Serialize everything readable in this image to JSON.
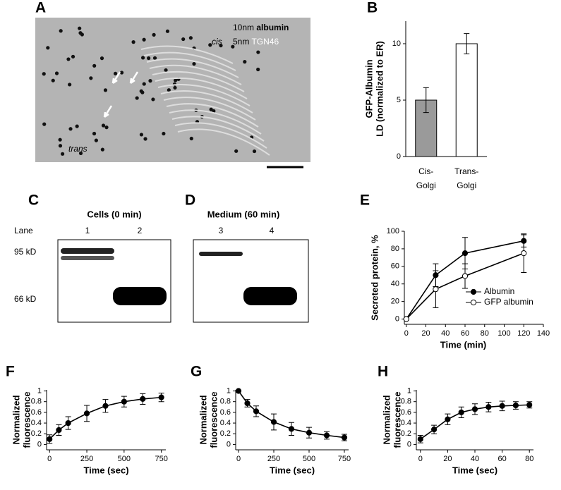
{
  "micrograph": {
    "label": "A",
    "legend": [
      {
        "size": "10nm",
        "name": "albumin"
      },
      {
        "size": "5nm",
        "name": "TGN46"
      }
    ],
    "cis": "cis",
    "trans": "trans"
  },
  "blots": [
    {
      "label": "C",
      "title": "Cells (0 min)",
      "lane_title": "Lane",
      "lanes": [
        "1",
        "2"
      ],
      "markers": [
        "95 kD",
        "66 kD"
      ]
    },
    {
      "label": "D",
      "title": "Medium (60 min)",
      "lanes": [
        "3",
        "4"
      ]
    }
  ],
  "chart_data": [
    {
      "type": "bar",
      "label": "B",
      "ylabel": "GFP-Albumin\nLD (normalized to ER)",
      "categories": [
        "Cis-\nGolgi",
        "Trans-\nGolgi"
      ],
      "values": [
        5,
        10
      ],
      "errors": [
        1.1,
        0.9
      ],
      "colors": [
        "#9a9a9a",
        "#ffffff"
      ],
      "ylim": [
        0,
        12
      ],
      "yticks": [
        0,
        5,
        10
      ]
    },
    {
      "type": "line",
      "label": "E",
      "ylabel": "Secreted protein, %",
      "xlabel": "Time (min)",
      "xlim": [
        -2,
        140
      ],
      "xticks": [
        0,
        20,
        40,
        60,
        80,
        100,
        120,
        140
      ],
      "ylim": [
        -6,
        100
      ],
      "yticks": [
        0,
        20,
        40,
        60,
        80,
        100
      ],
      "legend": "lower right",
      "series": [
        {
          "name": "Albumin",
          "color": "#000000",
          "marker_fill": "#000000",
          "x": [
            0,
            30,
            60,
            120
          ],
          "values": [
            0,
            50,
            75,
            89
          ],
          "errors": [
            0,
            13,
            18,
            7
          ]
        },
        {
          "name": "GFP albumin",
          "color": "#000000",
          "marker_fill": "#ffffff",
          "x": [
            0,
            30,
            60,
            120
          ],
          "values": [
            0,
            34,
            49,
            75
          ],
          "errors": [
            0,
            21,
            14,
            22
          ]
        }
      ]
    },
    {
      "type": "line",
      "label": "F",
      "ylabel": "Normalized\nfluorescence",
      "xlabel": "Time (sec)",
      "xlim": [
        -20,
        780
      ],
      "xticks": [
        0,
        250,
        500,
        750
      ],
      "ylim": [
        -0.1,
        1.02
      ],
      "yticks": [
        0,
        0.2,
        0.4,
        0.6,
        0.8,
        1
      ],
      "series": [
        {
          "color": "#000000",
          "marker_fill": "#000000",
          "x": [
            0,
            62.5,
            125,
            250,
            375,
            500,
            625,
            750
          ],
          "values": [
            0.1,
            0.27,
            0.4,
            0.58,
            0.72,
            0.8,
            0.85,
            0.88
          ],
          "errors": [
            0.08,
            0.1,
            0.12,
            0.15,
            0.12,
            0.1,
            0.1,
            0.08
          ]
        }
      ]
    },
    {
      "type": "line",
      "label": "G",
      "ylabel": "Normalized\nfluorescence",
      "xlabel": "Time (sec)",
      "xlim": [
        -20,
        780
      ],
      "xticks": [
        0,
        250,
        500,
        750
      ],
      "ylim": [
        -0.1,
        1.02
      ],
      "yticks": [
        0,
        0.2,
        0.4,
        0.6,
        0.8,
        1
      ],
      "series": [
        {
          "color": "#000000",
          "marker_fill": "#000000",
          "x": [
            0,
            62.5,
            125,
            250,
            375,
            500,
            625,
            750
          ],
          "values": [
            1,
            0.77,
            0.62,
            0.42,
            0.29,
            0.22,
            0.17,
            0.13
          ],
          "errors": [
            0,
            0.07,
            0.1,
            0.15,
            0.12,
            0.1,
            0.07,
            0.06
          ]
        }
      ]
    },
    {
      "type": "line",
      "label": "H",
      "ylabel": "Normalized\nfluorescence",
      "xlabel": "Time (sec)",
      "xlim": [
        -3,
        83
      ],
      "xticks": [
        0,
        20,
        40,
        60,
        80
      ],
      "ylim": [
        -0.1,
        1.02
      ],
      "yticks": [
        0,
        0.2,
        0.4,
        0.6,
        0.8,
        1
      ],
      "series": [
        {
          "color": "#000000",
          "marker_fill": "#000000",
          "x": [
            0,
            10,
            20,
            30,
            40,
            50,
            60,
            70,
            80
          ],
          "values": [
            0.1,
            0.28,
            0.47,
            0.6,
            0.66,
            0.7,
            0.72,
            0.73,
            0.74
          ],
          "errors": [
            0.07,
            0.08,
            0.1,
            0.1,
            0.1,
            0.09,
            0.09,
            0.07,
            0.06
          ]
        }
      ]
    }
  ]
}
